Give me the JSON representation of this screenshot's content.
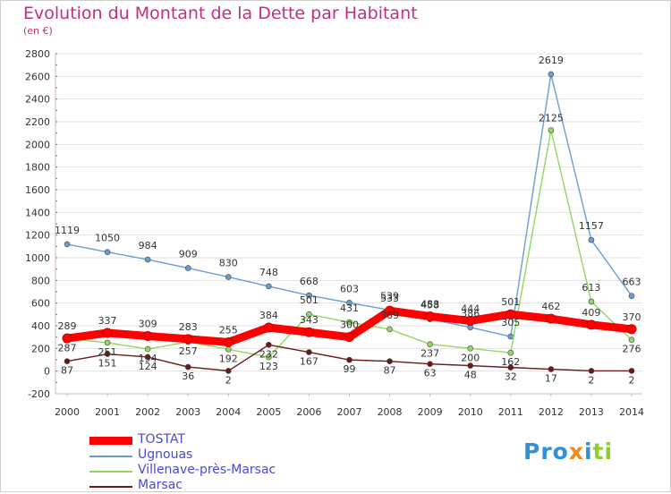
{
  "title": "Evolution du Montant de la Dette par Habitant",
  "subtitle": "(en €)",
  "logo": "Proxiti",
  "chart_data": {
    "type": "line",
    "title": "Evolution du Montant de la Dette par Habitant",
    "subtitle": "(en €)",
    "x": [
      2000,
      2001,
      2002,
      2003,
      2004,
      2005,
      2006,
      2007,
      2008,
      2009,
      2010,
      2011,
      2012,
      2013,
      2014
    ],
    "ylim": [
      -200,
      2800
    ],
    "yticks": [
      -200,
      0,
      200,
      400,
      600,
      800,
      1000,
      1200,
      1400,
      1600,
      1800,
      2000,
      2200,
      2400,
      2600,
      2800
    ],
    "grid": "horizontal",
    "legend_placement": "bottom-left",
    "series": [
      {
        "name": "TOSTAT",
        "color": "#ff0000",
        "values": [
          289,
          337,
          309,
          283,
          255,
          384,
          343,
          300,
          533,
          483,
          444,
          501,
          462,
          409,
          370
        ]
      },
      {
        "name": "Ugnouas",
        "color": "#6a9ed0",
        "values": [
          1119,
          1050,
          984,
          909,
          830,
          748,
          668,
          603,
          539,
          458,
          386,
          305,
          2619,
          1157,
          663
        ]
      },
      {
        "name": "Villenave-près-Marsac",
        "color": "#90d860",
        "values": [
          287,
          251,
          194,
          257,
          192,
          123,
          501,
          431,
          369,
          237,
          200,
          162,
          2125,
          613,
          276
        ]
      },
      {
        "name": "Marsac",
        "color": "#6b1818",
        "values": [
          87,
          151,
          124,
          36,
          2,
          232,
          167,
          99,
          87,
          63,
          48,
          32,
          17,
          2,
          2
        ]
      }
    ]
  }
}
